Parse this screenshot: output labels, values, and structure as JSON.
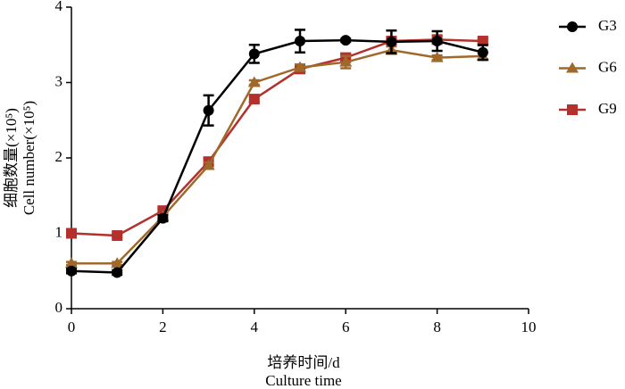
{
  "chart_data": {
    "type": "line",
    "y_label": [
      "细胞数量(×10⁵)",
      "Cell number(×10⁵)"
    ],
    "x_label": [
      "培养时间/d",
      "Culture time"
    ],
    "x": [
      0,
      1,
      2,
      3,
      4,
      5,
      6,
      7,
      8,
      9
    ],
    "series": [
      {
        "name": "G3",
        "color": "#000000",
        "marker": "circle",
        "values": [
          0.5,
          0.48,
          1.2,
          2.63,
          3.38,
          3.55,
          3.56,
          3.54,
          3.55,
          3.4
        ],
        "errors": [
          0.03,
          0.03,
          0.04,
          0.2,
          0.12,
          0.15,
          0.02,
          0.15,
          0.13,
          0.1
        ]
      },
      {
        "name": "G6",
        "color": "#a0692c",
        "marker": "triangle",
        "values": [
          0.6,
          0.6,
          1.22,
          1.9,
          3.0,
          3.2,
          3.27,
          3.43,
          3.33,
          3.35
        ],
        "errors": [
          0.02,
          0.02,
          0.03,
          0.04,
          0.03,
          0.04,
          0.08,
          0.05,
          0.03,
          0.04
        ]
      },
      {
        "name": "G9",
        "color": "#b3302c",
        "marker": "square",
        "values": [
          1.0,
          0.97,
          1.3,
          1.95,
          2.78,
          3.18,
          3.33,
          3.55,
          3.57,
          3.55
        ],
        "errors": [
          0.02,
          0.02,
          0.03,
          0.05,
          0.04,
          0.04,
          0.05,
          0.04,
          0.05,
          0.03
        ]
      }
    ],
    "xlim": [
      0,
      10
    ],
    "xticks": [
      0,
      2,
      4,
      6,
      8,
      10
    ],
    "ylim": [
      0,
      4
    ],
    "yticks": [
      0,
      1,
      2,
      3,
      4
    ],
    "grid": false,
    "legend": "right"
  }
}
